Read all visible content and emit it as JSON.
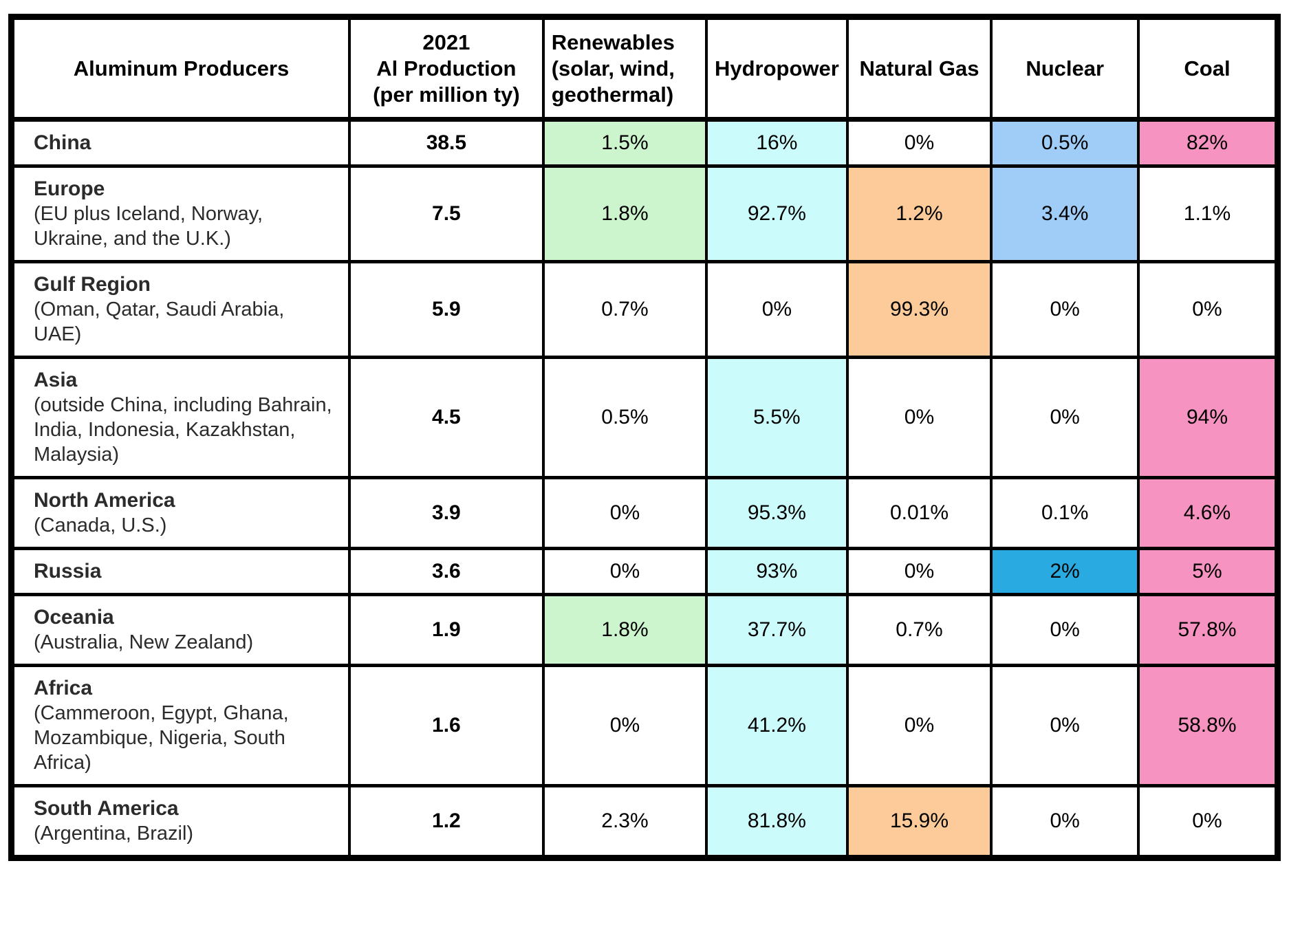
{
  "chart_data": {
    "type": "table",
    "columns": [
      "Aluminum Producers",
      "2021\nAl Production\n(per million ty)",
      "Renewables\n(solar, wind,\ngeothermal)",
      "Hydropower",
      "Natural Gas",
      "Nuclear",
      "Coal"
    ],
    "rows": [
      {
        "producer": "China",
        "detail": "",
        "production": "38.5",
        "renewables": {
          "value": "1.5%",
          "color": "green"
        },
        "hydropower": {
          "value": "16%",
          "color": "cyan"
        },
        "natural_gas": {
          "value": "0%",
          "color": "none"
        },
        "nuclear": {
          "value": "0.5%",
          "color": "light_blue"
        },
        "coal": {
          "value": "82%",
          "color": "pink"
        }
      },
      {
        "producer": "Europe",
        "detail": "(EU plus Iceland, Norway, Ukraine, and the U.K.)",
        "production": "7.5",
        "renewables": {
          "value": "1.8%",
          "color": "green"
        },
        "hydropower": {
          "value": "92.7%",
          "color": "cyan"
        },
        "natural_gas": {
          "value": "1.2%",
          "color": "orange"
        },
        "nuclear": {
          "value": "3.4%",
          "color": "light_blue"
        },
        "coal": {
          "value": "1.1%",
          "color": "none"
        }
      },
      {
        "producer": "Gulf Region",
        "detail": "(Oman, Qatar, Saudi Arabia, UAE)",
        "production": "5.9",
        "renewables": {
          "value": "0.7%",
          "color": "none"
        },
        "hydropower": {
          "value": "0%",
          "color": "none"
        },
        "natural_gas": {
          "value": "99.3%",
          "color": "orange"
        },
        "nuclear": {
          "value": "0%",
          "color": "none"
        },
        "coal": {
          "value": "0%",
          "color": "none"
        }
      },
      {
        "producer": "Asia",
        "detail": "(outside China, including Bahrain, India, Indonesia, Kazakhstan, Malaysia)",
        "production": "4.5",
        "renewables": {
          "value": "0.5%",
          "color": "none"
        },
        "hydropower": {
          "value": "5.5%",
          "color": "cyan"
        },
        "natural_gas": {
          "value": "0%",
          "color": "none"
        },
        "nuclear": {
          "value": "0%",
          "color": "none"
        },
        "coal": {
          "value": "94%",
          "color": "pink"
        }
      },
      {
        "producer": "North America",
        "detail": "(Canada, U.S.)",
        "production": "3.9",
        "renewables": {
          "value": "0%",
          "color": "none"
        },
        "hydropower": {
          "value": "95.3%",
          "color": "cyan"
        },
        "natural_gas": {
          "value": "0.01%",
          "color": "none"
        },
        "nuclear": {
          "value": "0.1%",
          "color": "none"
        },
        "coal": {
          "value": "4.6%",
          "color": "pink"
        }
      },
      {
        "producer": "Russia",
        "detail": "",
        "production": "3.6",
        "renewables": {
          "value": "0%",
          "color": "none"
        },
        "hydropower": {
          "value": "93%",
          "color": "cyan"
        },
        "natural_gas": {
          "value": "0%",
          "color": "none"
        },
        "nuclear": {
          "value": "2%",
          "color": "dark_blue"
        },
        "coal": {
          "value": "5%",
          "color": "pink"
        }
      },
      {
        "producer": "Oceania",
        "detail": "(Australia, New Zealand)",
        "production": "1.9",
        "renewables": {
          "value": "1.8%",
          "color": "green"
        },
        "hydropower": {
          "value": "37.7%",
          "color": "cyan"
        },
        "natural_gas": {
          "value": "0.7%",
          "color": "none"
        },
        "nuclear": {
          "value": "0%",
          "color": "none"
        },
        "coal": {
          "value": "57.8%",
          "color": "pink"
        }
      },
      {
        "producer": "Africa",
        "detail": "(Cammeroon, Egypt, Ghana, Mozambique, Nigeria, South Africa)",
        "production": "1.6",
        "renewables": {
          "value": "0%",
          "color": "none"
        },
        "hydropower": {
          "value": "41.2%",
          "color": "cyan"
        },
        "natural_gas": {
          "value": "0%",
          "color": "none"
        },
        "nuclear": {
          "value": "0%",
          "color": "none"
        },
        "coal": {
          "value": "58.8%",
          "color": "pink"
        }
      },
      {
        "producer": "South America",
        "detail": "(Argentina, Brazil)",
        "production": "1.2",
        "renewables": {
          "value": "2.3%",
          "color": "none"
        },
        "hydropower": {
          "value": "81.8%",
          "color": "cyan"
        },
        "natural_gas": {
          "value": "15.9%",
          "color": "orange"
        },
        "nuclear": {
          "value": "0%",
          "color": "none"
        },
        "coal": {
          "value": "0%",
          "color": "none"
        }
      }
    ]
  },
  "colors": {
    "green": "#cdf5cd",
    "cyan": "#ccfbfb",
    "orange": "#fccb99",
    "light_blue": "#9fcdf7",
    "dark_blue": "#29abe2",
    "pink": "#f793c0",
    "none": "#ffffff"
  }
}
